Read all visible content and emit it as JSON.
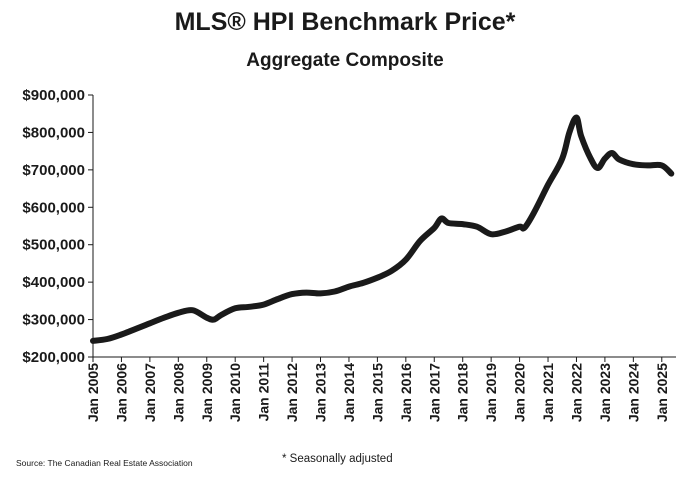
{
  "header": {
    "title": "MLS® HPI Benchmark Price*",
    "subtitle": "Aggregate Composite"
  },
  "footer": {
    "source": "Source: The Canadian Real Estate Association",
    "note": "* Seasonally adjusted"
  },
  "chart_data": {
    "type": "line",
    "title": "MLS® HPI Benchmark Price*",
    "subtitle": "Aggregate Composite",
    "xlabel": "",
    "ylabel": "",
    "ylim": [
      200000,
      900000
    ],
    "xlim": [
      "2005-01",
      "2025-07"
    ],
    "grid": "none",
    "legend": "none",
    "y_ticks": [
      "$200,000",
      "$300,000",
      "$400,000",
      "$500,000",
      "$600,000",
      "$700,000",
      "$800,000",
      "$900,000"
    ],
    "x_ticks": [
      "Jan 2005",
      "Jan 2006",
      "Jan 2007",
      "Jan 2008",
      "Jan 2009",
      "Jan 2010",
      "Jan 2011",
      "Jan 2012",
      "Jan 2013",
      "Jan 2014",
      "Jan 2015",
      "Jan 2016",
      "Jan 2017",
      "Jan 2018",
      "Jan 2019",
      "Jan 2020",
      "Jan 2021",
      "Jan 2022",
      "Jan 2023",
      "Jan 2024",
      "Jan 2025"
    ],
    "series": [
      {
        "color": "#1a1a1a",
        "x": [
          "2005-01",
          "2005-07",
          "2006-01",
          "2006-07",
          "2007-01",
          "2007-07",
          "2008-01",
          "2008-07",
          "2009-01",
          "2009-04",
          "2009-07",
          "2010-01",
          "2010-07",
          "2011-01",
          "2011-07",
          "2012-01",
          "2012-07",
          "2013-01",
          "2013-07",
          "2014-01",
          "2014-07",
          "2015-01",
          "2015-07",
          "2016-01",
          "2016-07",
          "2017-01",
          "2017-04",
          "2017-07",
          "2018-01",
          "2018-07",
          "2019-01",
          "2019-07",
          "2020-01",
          "2020-03",
          "2020-07",
          "2021-01",
          "2021-07",
          "2021-10",
          "2022-01",
          "2022-03",
          "2022-07",
          "2022-10",
          "2023-01",
          "2023-04",
          "2023-07",
          "2024-01",
          "2024-07",
          "2025-01",
          "2025-05"
        ],
        "y": [
          243000,
          248000,
          260000,
          275000,
          290000,
          305000,
          318000,
          325000,
          305000,
          300000,
          312000,
          330000,
          334000,
          340000,
          355000,
          368000,
          372000,
          370000,
          375000,
          388000,
          398000,
          412000,
          430000,
          460000,
          510000,
          545000,
          570000,
          558000,
          555000,
          548000,
          528000,
          535000,
          548000,
          545000,
          585000,
          660000,
          730000,
          800000,
          840000,
          790000,
          730000,
          705000,
          730000,
          745000,
          728000,
          715000,
          712000,
          712000,
          690000
        ]
      }
    ]
  }
}
